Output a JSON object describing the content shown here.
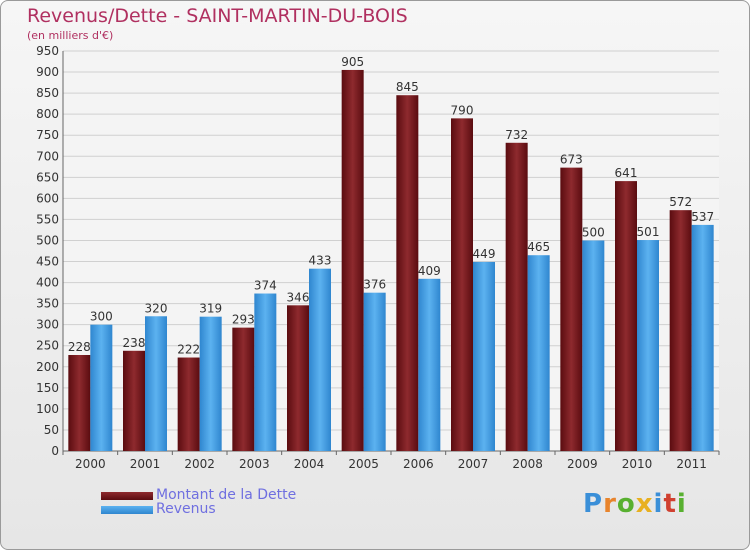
{
  "chart_data": {
    "type": "bar",
    "title": "Revenus/Dette - SAINT-MARTIN-DU-BOIS",
    "subtitle": "(en milliers d'€)",
    "categories": [
      "2000",
      "2001",
      "2002",
      "2003",
      "2004",
      "2005",
      "2006",
      "2007",
      "2008",
      "2009",
      "2010",
      "2011"
    ],
    "series": [
      {
        "name": "Montant de la Dette",
        "values": [
          228,
          238,
          222,
          293,
          346,
          905,
          845,
          790,
          732,
          673,
          641,
          572
        ],
        "color": "#7a1a1f"
      },
      {
        "name": "Revenus",
        "values": [
          300,
          320,
          319,
          374,
          433,
          376,
          409,
          449,
          465,
          500,
          501,
          537
        ],
        "color": "#4aa3e8"
      }
    ],
    "ylim": [
      0,
      950
    ],
    "ytick_step": 50,
    "grid": true,
    "legend_position": "bottom-left",
    "data_labels": true
  },
  "logo": {
    "text": "Proxiti"
  }
}
